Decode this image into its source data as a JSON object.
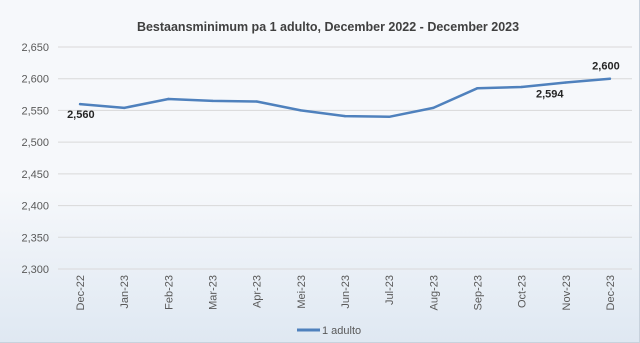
{
  "chart_data": {
    "type": "line",
    "title": "Bestaansminimum pa 1 adulto, December 2022 - December 2023",
    "xlabel": "",
    "ylabel": "",
    "categories": [
      "Dec-22",
      "Jan-23",
      "Feb-23",
      "Mar-23",
      "Apr-23",
      "Mei-23",
      "Jun-23",
      "Jul-23",
      "Aug-23",
      "Sep-23",
      "Oct-23",
      "Nov-23",
      "Dec-23"
    ],
    "series": [
      {
        "name": "1 adulto",
        "color": "#4f81bd",
        "values": [
          2560,
          2554,
          2568,
          2565,
          2564,
          2550,
          2541,
          2540,
          2554,
          2585,
          2587,
          2594,
          2600
        ]
      }
    ],
    "ylim": [
      2300,
      2650
    ],
    "yticks": [
      "2,300",
      "2,350",
      "2,400",
      "2,450",
      "2,500",
      "2,550",
      "2,600",
      "2,650"
    ],
    "data_labels": [
      {
        "index": 0,
        "text": "2,560"
      },
      {
        "index": 11,
        "text": "2,594"
      },
      {
        "index": 12,
        "text": "2,600"
      }
    ],
    "grid": true,
    "legend_position": "bottom"
  }
}
